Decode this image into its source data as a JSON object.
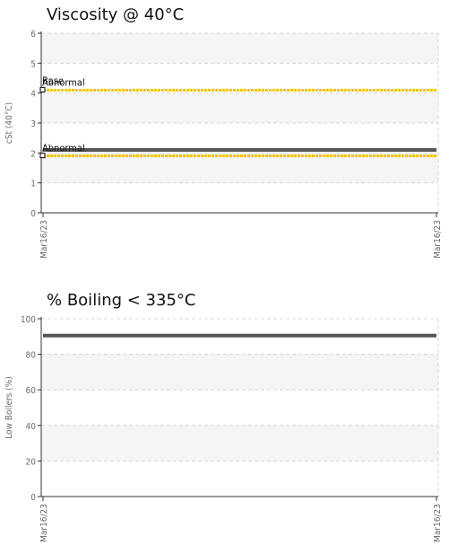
{
  "chart_data": [
    {
      "type": "line",
      "title": "Viscosity @ 40°C",
      "ylabel": "cSt (40°C)",
      "ylim": [
        0,
        6
      ],
      "yticks": [
        0,
        1,
        2,
        3,
        4,
        5,
        6
      ],
      "x": [
        "Mar16/23",
        "Mar16/23"
      ],
      "series": [
        {
          "values": [
            2.1,
            2.1
          ],
          "color": "#555555"
        }
      ],
      "limits": [
        {
          "value": 4.1,
          "color": "#f2c200",
          "label": "Abnormal"
        },
        {
          "value": 1.9,
          "color": "#f2c200",
          "label": "Abnormal"
        }
      ],
      "base": {
        "value": 4.15,
        "label": "Base"
      }
    },
    {
      "type": "line",
      "title": "% Boiling < 335°C",
      "ylabel": "Low Boilers (%)",
      "ylim": [
        0,
        100
      ],
      "yticks": [
        0,
        20,
        40,
        60,
        80,
        100
      ],
      "x": [
        "Mar16/23",
        "Mar16/23"
      ],
      "series": [
        {
          "values": [
            90.5,
            90.5
          ],
          "color": "#555555"
        }
      ]
    }
  ]
}
